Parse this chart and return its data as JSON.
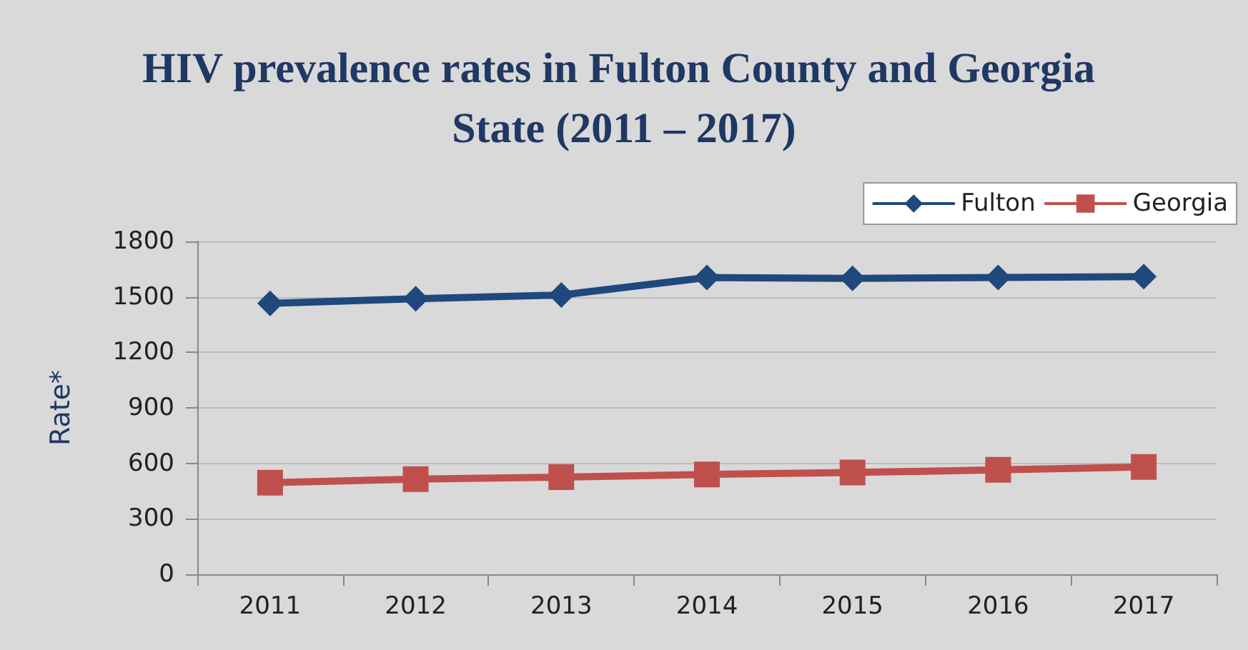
{
  "chart_data": {
    "type": "line",
    "title": "HIV prevalence rates in Fulton County and Georgia State (2011 – 2017)",
    "ylabel": "Rate*",
    "categories": [
      "2011",
      "2012",
      "2013",
      "2014",
      "2015",
      "2016",
      "2017"
    ],
    "series": [
      {
        "name": "Fulton",
        "color": "#1f497d",
        "marker": "diamond",
        "values": [
          1465,
          1490,
          1510,
          1605,
          1600,
          1605,
          1610
        ]
      },
      {
        "name": "Georgia",
        "color": "#c0504d",
        "marker": "square",
        "values": [
          495,
          515,
          525,
          540,
          550,
          565,
          580
        ]
      }
    ],
    "ylim": [
      0,
      1800
    ],
    "yticks": [
      0,
      300,
      600,
      900,
      1200,
      1500,
      1800
    ],
    "grid": "y",
    "legend": "top right",
    "line_style": "solid"
  }
}
